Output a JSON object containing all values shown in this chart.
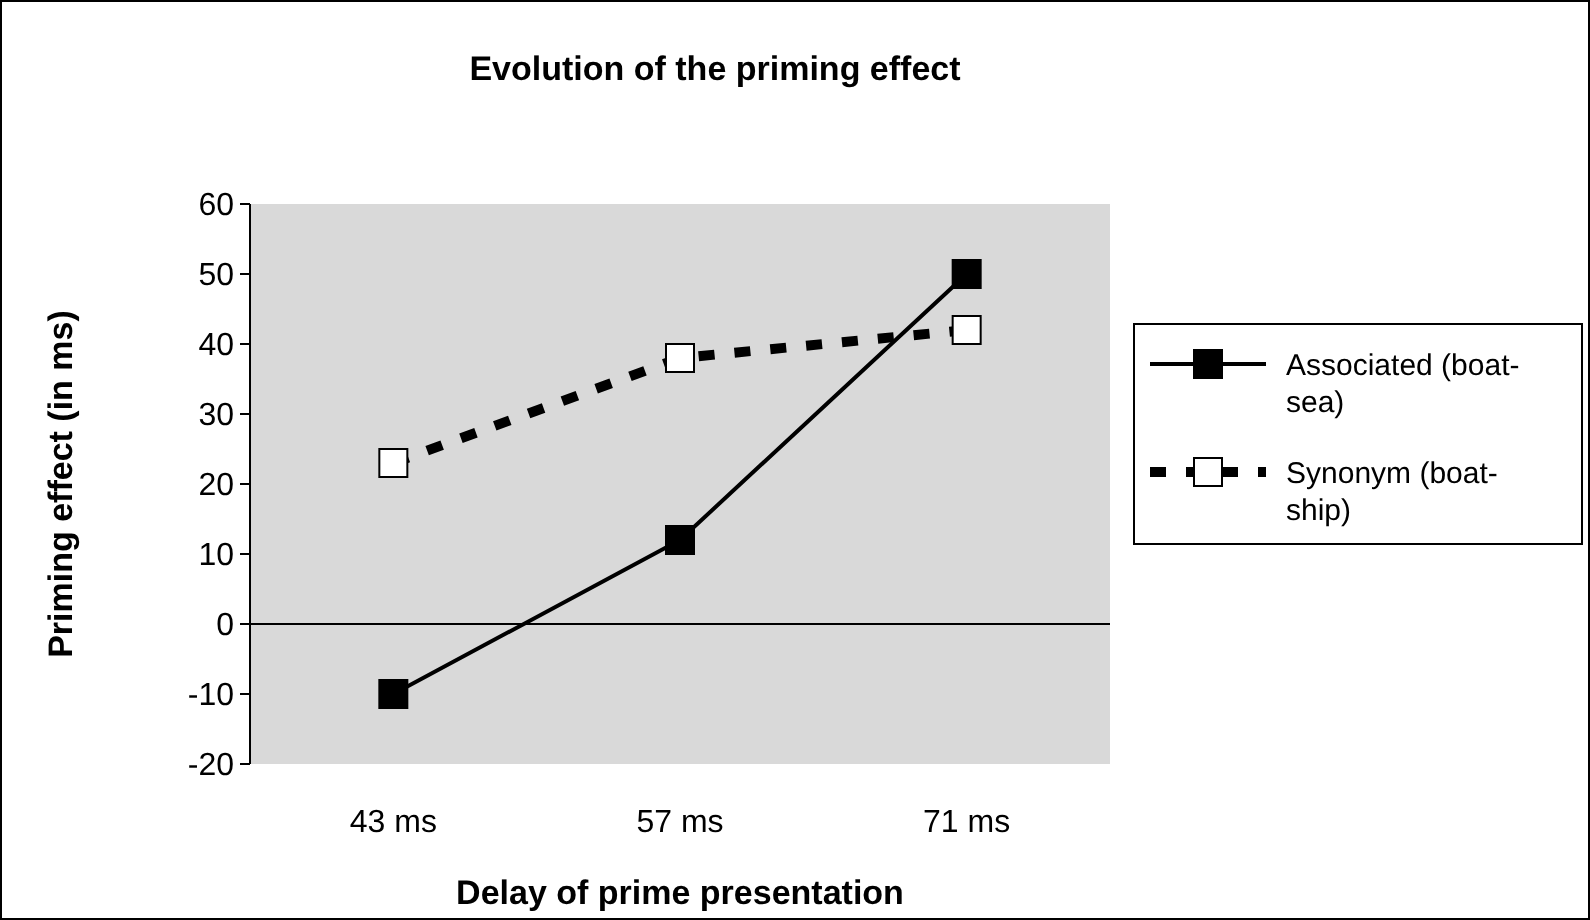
{
  "chart_data": {
    "type": "line",
    "title": "Evolution of the priming effect",
    "xlabel": "Delay of prime presentation",
    "ylabel": "Priming effect (in ms)",
    "categories": [
      "43 ms",
      "57 ms",
      "71 ms"
    ],
    "series": [
      {
        "name": "Associated (boat-sea)",
        "color": "#000000",
        "values": [
          -10,
          12,
          50
        ],
        "line_style": "solid",
        "marker": "square"
      },
      {
        "name": "Synonym (boat-ship)",
        "color": "#000000",
        "values": [
          23,
          38,
          42
        ],
        "line_style": "dashed",
        "marker": "square"
      }
    ],
    "ylim": [
      -20,
      60
    ],
    "yticks": [
      -20,
      -10,
      0,
      10,
      20,
      30,
      40,
      50,
      60
    ],
    "legend": "right"
  }
}
